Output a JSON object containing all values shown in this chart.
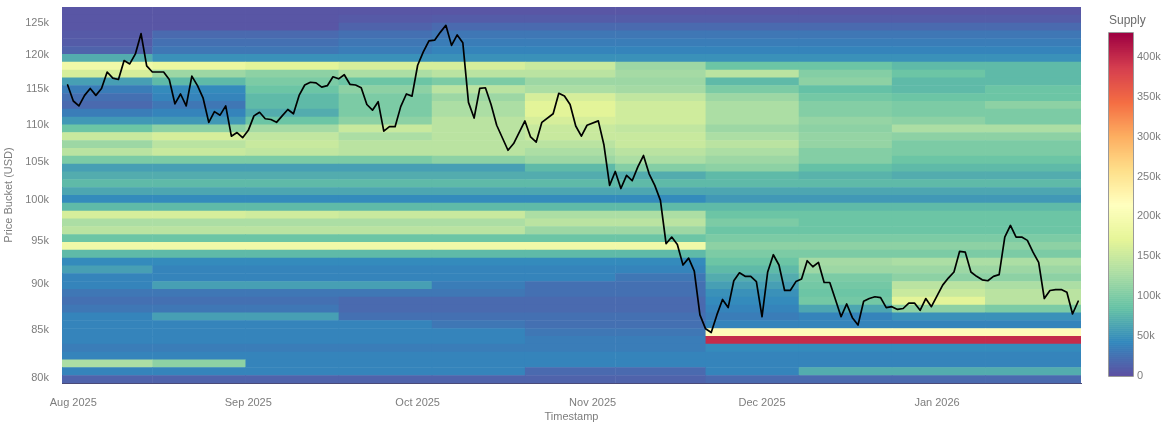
{
  "chart_data": {
    "type": "heatmap",
    "xlabel": "Timestamp",
    "ylabel": "Price Bucket (USD)",
    "clabel": "Supply",
    "log": "y",
    "xlim": [
      "2025-07-30",
      "2026-01-26T12:00"
    ],
    "xticks": [
      {
        "value": "2025-08-01",
        "label": "Aug 2025"
      },
      {
        "value": "2025-09-01",
        "label": "Sep 2025"
      },
      {
        "value": "2025-10-01",
        "label": "Oct 2025"
      },
      {
        "value": "2025-11-01",
        "label": "Nov 2025"
      },
      {
        "value": "2025-12-01",
        "label": "Dec 2025"
      },
      {
        "value": "2026-01-01",
        "label": "Jan 2026"
      }
    ],
    "ylim": [
      79500,
      127500
    ],
    "yticks": [
      {
        "value": 80000,
        "label": "80k"
      },
      {
        "value": 85000,
        "label": "85k"
      },
      {
        "value": 90000,
        "label": "90k"
      },
      {
        "value": 95000,
        "label": "95k"
      },
      {
        "value": 100000,
        "label": "100k"
      },
      {
        "value": 105000,
        "label": "105k"
      },
      {
        "value": 110000,
        "label": "110k"
      },
      {
        "value": 115000,
        "label": "115k"
      },
      {
        "value": 120000,
        "label": "120k"
      },
      {
        "value": 125000,
        "label": "125k"
      }
    ],
    "clim": [
      0,
      430000
    ],
    "cticks": [
      0,
      {
        "value": 50000,
        "label": "50k"
      },
      {
        "value": 100000,
        "label": "100k"
      },
      {
        "value": 150000,
        "label": "150k"
      },
      {
        "value": 200000,
        "label": "200k"
      },
      {
        "value": 250000,
        "label": "250k"
      },
      {
        "value": 300000,
        "label": "300k"
      },
      {
        "value": 350000,
        "label": "350k"
      },
      {
        "value": 400000,
        "label": "400k"
      }
    ],
    "x": [
      "2025-08-07",
      "2025-08-23",
      "2025-09-09",
      "2025-09-25",
      "2025-10-12",
      "2025-10-28",
      "2025-11-13",
      "2025-11-29",
      "2025-12-16",
      "2026-01-01",
      "2026-01-18"
    ],
    "cells": [
      [
        5000,
        5000,
        5000,
        5000,
        5000,
        5000,
        5000,
        5000,
        5000,
        5000,
        5000
      ],
      [
        5000,
        5000,
        5000,
        8000,
        10000,
        10000,
        10000,
        10000,
        10000,
        10000,
        10000
      ],
      [
        5000,
        5000,
        5000,
        15000,
        20000,
        20000,
        20000,
        20000,
        20000,
        20000,
        20000
      ],
      [
        8000,
        20000,
        20000,
        25000,
        30000,
        30000,
        30000,
        30000,
        30000,
        30000,
        30000
      ],
      [
        10000,
        25000,
        25000,
        30000,
        35000,
        35000,
        35000,
        35000,
        35000,
        35000,
        35000
      ],
      [
        15000,
        30000,
        30000,
        35000,
        40000,
        40000,
        40000,
        40000,
        40000,
        40000,
        40000
      ],
      [
        70000,
        50000,
        50000,
        50000,
        50000,
        50000,
        50000,
        50000,
        50000,
        50000,
        50000
      ],
      [
        190000,
        180000,
        170000,
        160000,
        160000,
        150000,
        120000,
        90000,
        90000,
        80000,
        80000
      ],
      [
        160000,
        120000,
        110000,
        130000,
        140000,
        140000,
        125000,
        140000,
        105000,
        90000,
        80000
      ],
      [
        60000,
        80000,
        100000,
        90000,
        100000,
        120000,
        120000,
        80000,
        110000,
        80000,
        80000
      ],
      [
        35000,
        45000,
        90000,
        110000,
        140000,
        130000,
        125000,
        100000,
        85000,
        80000,
        90000
      ],
      [
        25000,
        40000,
        80000,
        100000,
        120000,
        160000,
        145000,
        120000,
        95000,
        90000,
        90000
      ],
      [
        20000,
        30000,
        80000,
        100000,
        130000,
        170000,
        155000,
        130000,
        105000,
        100000,
        110000
      ],
      [
        35000,
        40000,
        70000,
        100000,
        130000,
        170000,
        155000,
        130000,
        105000,
        100000,
        100000
      ],
      [
        55000,
        55000,
        90000,
        110000,
        140000,
        160000,
        155000,
        130000,
        115000,
        110000,
        100000
      ],
      [
        90000,
        110000,
        125000,
        150000,
        140000,
        150000,
        145000,
        120000,
        110000,
        130000,
        130000
      ],
      [
        150000,
        160000,
        145000,
        130000,
        140000,
        150000,
        150000,
        130000,
        115000,
        110000,
        110000
      ],
      [
        120000,
        140000,
        150000,
        140000,
        140000,
        140000,
        150000,
        140000,
        115000,
        100000,
        100000
      ],
      [
        140000,
        150000,
        145000,
        140000,
        140000,
        130000,
        140000,
        130000,
        105000,
        100000,
        100000
      ],
      [
        100000,
        100000,
        100000,
        100000,
        110000,
        120000,
        130000,
        120000,
        105000,
        90000,
        90000
      ],
      [
        60000,
        60000,
        60000,
        60000,
        60000,
        80000,
        105000,
        110000,
        85000,
        80000,
        80000
      ],
      [
        70000,
        70000,
        70000,
        70000,
        70000,
        70000,
        70000,
        80000,
        75000,
        70000,
        70000
      ],
      [
        80000,
        80000,
        80000,
        80000,
        80000,
        80000,
        80000,
        80000,
        80000,
        80000,
        80000
      ],
      [
        65000,
        65000,
        65000,
        65000,
        65000,
        65000,
        65000,
        65000,
        65000,
        65000,
        65000
      ],
      [
        45000,
        45000,
        45000,
        45000,
        45000,
        45000,
        45000,
        55000,
        55000,
        55000,
        55000
      ],
      [
        80000,
        80000,
        80000,
        80000,
        80000,
        80000,
        80000,
        80000,
        80000,
        80000,
        80000
      ],
      [
        160000,
        160000,
        155000,
        150000,
        150000,
        130000,
        130000,
        90000,
        90000,
        90000,
        90000
      ],
      [
        130000,
        130000,
        130000,
        130000,
        130000,
        140000,
        140000,
        100000,
        90000,
        90000,
        90000
      ],
      [
        140000,
        140000,
        140000,
        140000,
        140000,
        120000,
        120000,
        90000,
        90000,
        90000,
        90000
      ],
      [
        90000,
        90000,
        90000,
        90000,
        90000,
        90000,
        90000,
        100000,
        100000,
        100000,
        100000
      ],
      [
        190000,
        190000,
        190000,
        190000,
        190000,
        190000,
        190000,
        110000,
        110000,
        110000,
        110000
      ],
      [
        80000,
        80000,
        80000,
        80000,
        80000,
        80000,
        80000,
        100000,
        100000,
        100000,
        100000
      ],
      [
        45000,
        45000,
        45000,
        45000,
        45000,
        45000,
        45000,
        90000,
        125000,
        130000,
        130000
      ],
      [
        60000,
        40000,
        40000,
        40000,
        40000,
        40000,
        40000,
        80000,
        120000,
        120000,
        120000
      ],
      [
        40000,
        40000,
        40000,
        40000,
        40000,
        40000,
        30000,
        70000,
        100000,
        110000,
        110000
      ],
      [
        40000,
        60000,
        60000,
        60000,
        35000,
        25000,
        25000,
        60000,
        95000,
        140000,
        130000
      ],
      [
        30000,
        30000,
        30000,
        30000,
        30000,
        25000,
        25000,
        50000,
        90000,
        150000,
        140000
      ],
      [
        25000,
        25000,
        25000,
        20000,
        20000,
        20000,
        20000,
        45000,
        95000,
        170000,
        140000
      ],
      [
        30000,
        30000,
        30000,
        20000,
        20000,
        20000,
        20000,
        40000,
        65000,
        110000,
        100000
      ],
      [
        40000,
        60000,
        60000,
        25000,
        25000,
        25000,
        25000,
        35000,
        40000,
        50000,
        50000
      ],
      [
        40000,
        40000,
        40000,
        40000,
        30000,
        25000,
        25000,
        40000,
        40000,
        40000,
        40000
      ],
      [
        40000,
        40000,
        40000,
        40000,
        40000,
        30000,
        30000,
        220000,
        220000,
        220000,
        220000
      ],
      [
        40000,
        40000,
        40000,
        40000,
        40000,
        35000,
        35000,
        400000,
        400000,
        400000,
        400000
      ],
      [
        35000,
        35000,
        35000,
        35000,
        35000,
        35000,
        35000,
        45000,
        45000,
        45000,
        45000
      ],
      [
        40000,
        40000,
        40000,
        40000,
        40000,
        40000,
        40000,
        40000,
        40000,
        40000,
        40000
      ],
      [
        130000,
        110000,
        40000,
        40000,
        40000,
        40000,
        40000,
        40000,
        40000,
        40000,
        40000
      ],
      [
        40000,
        40000,
        40000,
        40000,
        40000,
        20000,
        20000,
        40000,
        70000,
        70000,
        70000
      ],
      [
        15000,
        15000,
        15000,
        15000,
        15000,
        15000,
        15000,
        20000,
        20000,
        20000,
        20000
      ]
    ],
    "series": [
      {
        "type": "line",
        "color": "#000000",
        "x": [
          "2025-07-31",
          "2025-08-01",
          "2025-08-02",
          "2025-08-03",
          "2025-08-04",
          "2025-08-05",
          "2025-08-06",
          "2025-08-07",
          "2025-08-08",
          "2025-08-09",
          "2025-08-10",
          "2025-08-11",
          "2025-08-12",
          "2025-08-13",
          "2025-08-14",
          "2025-08-15",
          "2025-08-17",
          "2025-08-18",
          "2025-08-19",
          "2025-08-20",
          "2025-08-21",
          "2025-08-22",
          "2025-08-23",
          "2025-08-24",
          "2025-08-25",
          "2025-08-26",
          "2025-08-27",
          "2025-08-28",
          "2025-08-29",
          "2025-08-30",
          "2025-08-31",
          "2025-09-01",
          "2025-09-02",
          "2025-09-03",
          "2025-09-04",
          "2025-09-05",
          "2025-09-06",
          "2025-09-07",
          "2025-09-08",
          "2025-09-09",
          "2025-09-10",
          "2025-09-11",
          "2025-09-12",
          "2025-09-13",
          "2025-09-14",
          "2025-09-15",
          "2025-09-16",
          "2025-09-17",
          "2025-09-18",
          "2025-09-19",
          "2025-09-20",
          "2025-09-21",
          "2025-09-22",
          "2025-09-23",
          "2025-09-24",
          "2025-09-25",
          "2025-09-26",
          "2025-09-27",
          "2025-09-28",
          "2025-09-29",
          "2025-09-30",
          "2025-10-01",
          "2025-10-02",
          "2025-10-03",
          "2025-10-04",
          "2025-10-05",
          "2025-10-06",
          "2025-10-07",
          "2025-10-08",
          "2025-10-09",
          "2025-10-10",
          "2025-10-11",
          "2025-10-12",
          "2025-10-13",
          "2025-10-14",
          "2025-10-15",
          "2025-10-17",
          "2025-10-18",
          "2025-10-20",
          "2025-10-21",
          "2025-10-22",
          "2025-10-23",
          "2025-10-25",
          "2025-10-26",
          "2025-10-27",
          "2025-10-28",
          "2025-10-29",
          "2025-10-30",
          "2025-10-31",
          "2025-11-02",
          "2025-11-03",
          "2025-11-04",
          "2025-11-05",
          "2025-11-06",
          "2025-11-07",
          "2025-11-08",
          "2025-11-09",
          "2025-11-10",
          "2025-11-11",
          "2025-11-12",
          "2025-11-13",
          "2025-11-14",
          "2025-11-15",
          "2025-11-16",
          "2025-11-17",
          "2025-11-18",
          "2025-11-19",
          "2025-11-20",
          "2025-11-21",
          "2025-11-22",
          "2025-11-23",
          "2025-11-24",
          "2025-11-25",
          "2025-11-26",
          "2025-11-27",
          "2025-11-28",
          "2025-11-29",
          "2025-11-30",
          "2025-12-01",
          "2025-12-02",
          "2025-12-03",
          "2025-12-04",
          "2025-12-05",
          "2025-12-06",
          "2025-12-07",
          "2025-12-08",
          "2025-12-09",
          "2025-12-10",
          "2025-12-11",
          "2025-12-12",
          "2025-12-13",
          "2025-12-14",
          "2025-12-15",
          "2025-12-16",
          "2025-12-17",
          "2025-12-18",
          "2025-12-19",
          "2025-12-20",
          "2025-12-21",
          "2025-12-22",
          "2025-12-23",
          "2025-12-24",
          "2025-12-25",
          "2025-12-26",
          "2025-12-27",
          "2025-12-28",
          "2025-12-29",
          "2025-12-30",
          "2025-12-31",
          "2026-01-01",
          "2026-01-02",
          "2026-01-03",
          "2026-01-04",
          "2026-01-05",
          "2026-01-06",
          "2026-01-07",
          "2026-01-08",
          "2026-01-09",
          "2026-01-10",
          "2026-01-11",
          "2026-01-12",
          "2026-01-13",
          "2026-01-14",
          "2026-01-15",
          "2026-01-16",
          "2026-01-17",
          "2026-01-18",
          "2026-01-19",
          "2026-01-20",
          "2026-01-21",
          "2026-01-22",
          "2026-01-23",
          "2026-01-24",
          "2026-01-25",
          "2026-01-26"
        ],
        "values": [
          115600,
          113300,
          112600,
          114100,
          115100,
          114100,
          115100,
          117500,
          116600,
          116400,
          119200,
          118700,
          120200,
          123300,
          118400,
          117500,
          117500,
          116400,
          112900,
          114300,
          112600,
          116900,
          115500,
          113700,
          110300,
          111800,
          111300,
          112600,
          108400,
          108900,
          108200,
          109200,
          111200,
          111700,
          110800,
          110700,
          110300,
          111200,
          112100,
          111500,
          114100,
          115600,
          116000,
          115900,
          115300,
          115500,
          116800,
          116500,
          117100,
          115700,
          115600,
          115200,
          112800,
          112000,
          113200,
          109100,
          109700,
          109700,
          112500,
          114300,
          114000,
          118500,
          120500,
          122200,
          122300,
          123500,
          124600,
          121500,
          123100,
          121900,
          113100,
          110900,
          115100,
          115200,
          112800,
          109900,
          106500,
          107400,
          110500,
          108300,
          107600,
          110300,
          111500,
          114400,
          114000,
          112800,
          109800,
          108400,
          109900,
          110500,
          107200,
          101900,
          103700,
          101500,
          103200,
          102500,
          104300,
          105800,
          103400,
          101900,
          100000,
          94700,
          95500,
          94600,
          92200,
          93000,
          91500,
          86600,
          85100,
          84700,
          86600,
          88300,
          87400,
          90400,
          91300,
          90900,
          90900,
          90300,
          86400,
          91400,
          93400,
          92200,
          89300,
          89300,
          90300,
          90600,
          92700,
          92000,
          92500,
          90200,
          90200,
          88300,
          86400,
          87800,
          86300,
          85500,
          88100,
          88400,
          88600,
          88500,
          87400,
          87500,
          87200,
          87300,
          87900,
          87900,
          87100,
          88400,
          87500,
          88700,
          89900,
          90700,
          91400,
          93800,
          93700,
          91400,
          90900,
          90500,
          90400,
          90900,
          91100,
          95500,
          96900,
          95500,
          95500,
          95100,
          93700,
          92500,
          88400,
          89300,
          89400,
          89400,
          89100,
          86700,
          88100
        ]
      }
    ]
  }
}
